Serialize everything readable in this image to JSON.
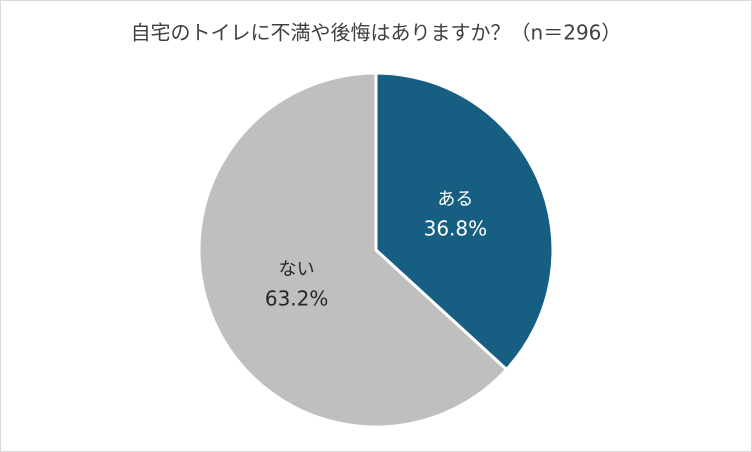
{
  "chart_data": {
    "type": "pie",
    "title": "自宅のトイレに不満や後悔はありますか？（n＝296）",
    "categories": [
      "ある",
      "ない"
    ],
    "values": [
      36.8,
      63.2
    ],
    "value_labels": [
      "36.8%",
      "63.2%"
    ],
    "colors": [
      "#165f82",
      "#bfbfbf"
    ],
    "label_colors": [
      "#ffffff",
      "#262626"
    ]
  }
}
